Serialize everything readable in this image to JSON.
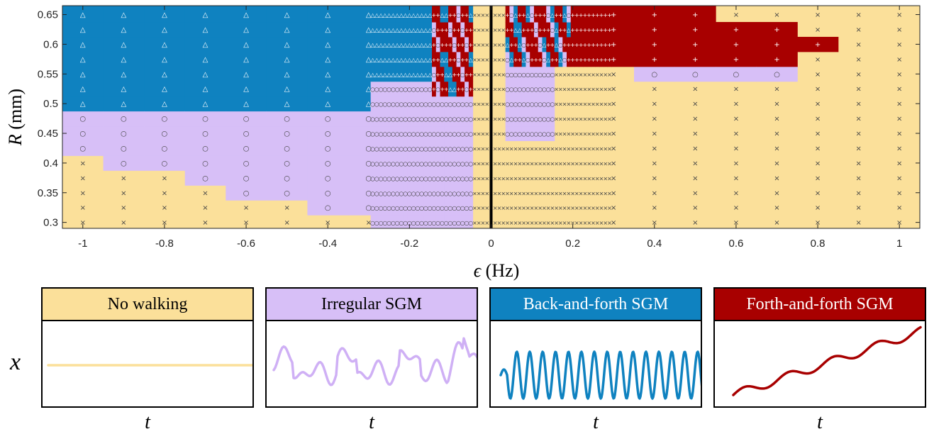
{
  "chart_data": {
    "type": "heatmap",
    "xlabel": "ϵ (Hz)",
    "ylabel": "R (mm)",
    "xlim": [
      -1.05,
      1.05
    ],
    "ylim": [
      0.29,
      0.665
    ],
    "xticks": [
      "-1",
      "-0.8",
      "-0.6",
      "-0.4",
      "-0.2",
      "0",
      "0.2",
      "0.4",
      "0.6",
      "0.8",
      "1"
    ],
    "xtick_values": [
      -1,
      -0.8,
      -0.6,
      -0.4,
      -0.2,
      0,
      0.2,
      0.4,
      0.6,
      0.8,
      1
    ],
    "yticks": [
      "0.3",
      "0.35",
      "0.4",
      "0.45",
      "0.5",
      "0.55",
      "0.6",
      "0.65"
    ],
    "ytick_values": [
      0.3,
      0.35,
      0.4,
      0.45,
      0.5,
      0.55,
      0.6,
      0.65
    ],
    "R_values": [
      0.3,
      0.325,
      0.35,
      0.375,
      0.4,
      0.425,
      0.45,
      0.475,
      0.5,
      0.525,
      0.55,
      0.575,
      0.6,
      0.625,
      0.65
    ],
    "categories": [
      "No walking",
      "Irregular SGM",
      "Back-and-forth SGM",
      "Forth-and-forth SGM"
    ],
    "category_markers": [
      "×",
      "○",
      "△",
      "+"
    ],
    "colors": {
      "No walking": "#fbe09a",
      "Irregular SGM": "#d7bff7",
      "Back-and-forth SGM": "#0f82c0",
      "Forth-and-forth SGM": "#a80000"
    },
    "coarse_region_boundaries": {
      "no_walking_below_R_at_eps": [
        [
          -1.0,
          0.4
        ],
        [
          -0.9,
          0.375
        ],
        [
          -0.8,
          0.375
        ],
        [
          -0.7,
          0.35
        ],
        [
          -0.6,
          0.325
        ],
        [
          -0.5,
          0.325
        ],
        [
          -0.4,
          0.3
        ]
      ],
      "back_and_forth_above_R_left": 0.5,
      "forth_and_forth_right": {
        "eps_max_by_R": {
          "0.575": 0.75,
          "0.6": 0.85,
          "0.625": 0.75,
          "0.65": 0.55
        }
      },
      "irregular_right_band": {
        "R": 0.55,
        "eps_range": [
          0.35,
          0.75
        ]
      }
    },
    "divider_eps": 0
  },
  "panels": [
    {
      "title": "No walking",
      "xlabel": "t",
      "trace": "flat"
    },
    {
      "title": "Irregular SGM",
      "xlabel": "t",
      "trace": "irregular"
    },
    {
      "title": "Back-and-forth SGM",
      "xlabel": "t",
      "trace": "oscillating"
    },
    {
      "title": "Forth-and-forth SGM",
      "xlabel": "t",
      "trace": "stepwise-rising"
    }
  ],
  "panel_ylabel": "x"
}
